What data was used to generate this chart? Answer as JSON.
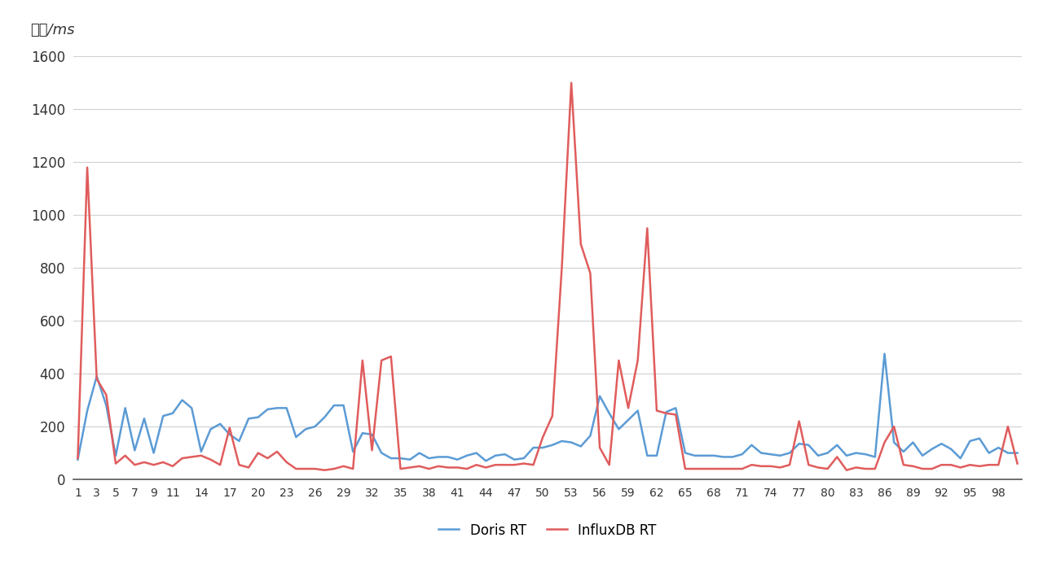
{
  "x_tick_labels": [
    "1",
    "3",
    "5",
    "7",
    "9",
    "11",
    "14",
    "17",
    "20",
    "23",
    "26",
    "29",
    "32",
    "35",
    "38",
    "41",
    "44",
    "47",
    "50",
    "53",
    "56",
    "59",
    "62",
    "65",
    "68",
    "71",
    "74",
    "77",
    "80",
    "83",
    "86",
    "89",
    "92",
    "95",
    "98"
  ],
  "x_tick_positions": [
    1,
    3,
    5,
    7,
    9,
    11,
    14,
    17,
    20,
    23,
    26,
    29,
    32,
    35,
    38,
    41,
    44,
    47,
    50,
    53,
    56,
    59,
    62,
    65,
    68,
    71,
    74,
    77,
    80,
    83,
    86,
    89,
    92,
    95,
    98
  ],
  "doris_rt": [
    75,
    260,
    390,
    280,
    90,
    270,
    110,
    230,
    100,
    240,
    250,
    300,
    270,
    105,
    190,
    210,
    170,
    145,
    230,
    235,
    265,
    270,
    270,
    160,
    190,
    200,
    235,
    280,
    280,
    105,
    175,
    170,
    100,
    80,
    80,
    75,
    100,
    80,
    85,
    85,
    75,
    90,
    100,
    70,
    90,
    95,
    75,
    80,
    120,
    120,
    130,
    145,
    140,
    125,
    165,
    315,
    250,
    190,
    225,
    260,
    90,
    90,
    255,
    270,
    100,
    90,
    90,
    90,
    85,
    85,
    95,
    130,
    100,
    95,
    90,
    100,
    135,
    130,
    90,
    100,
    130,
    90,
    100,
    95,
    85,
    475,
    140,
    105,
    140,
    90,
    115,
    135,
    115,
    80,
    145,
    155,
    100,
    120,
    100,
    100
  ],
  "influxdb_rt": [
    80,
    1180,
    380,
    320,
    60,
    90,
    55,
    65,
    55,
    65,
    50,
    80,
    85,
    90,
    75,
    55,
    195,
    55,
    45,
    100,
    80,
    105,
    65,
    40,
    40,
    40,
    35,
    40,
    50,
    40,
    450,
    110,
    450,
    465,
    40,
    45,
    50,
    40,
    50,
    45,
    45,
    40,
    55,
    45,
    55,
    55,
    55,
    60,
    55,
    160,
    240,
    800,
    1500,
    890,
    780,
    120,
    55,
    450,
    270,
    450,
    950,
    260,
    250,
    245,
    40,
    40,
    40,
    40,
    40,
    40,
    40,
    55,
    50,
    50,
    45,
    55,
    220,
    55,
    45,
    40,
    85,
    35,
    45,
    40,
    40,
    140,
    200,
    55,
    50,
    40,
    40,
    55,
    55,
    45,
    55,
    50,
    55,
    55,
    200,
    60
  ],
  "doris_color": "#5b9bd5",
  "influxdb_color": "#e05c5c",
  "ylabel": "单位/ms",
  "ylim": [
    0,
    1600
  ],
  "yticks": [
    0,
    200,
    400,
    600,
    800,
    1000,
    1200,
    1400,
    1600
  ],
  "legend_doris": "Doris RT",
  "legend_influx": "InfluxDB RT",
  "background_color": "#ffffff",
  "grid_color": "#d0d0d0",
  "line_width": 1.8
}
